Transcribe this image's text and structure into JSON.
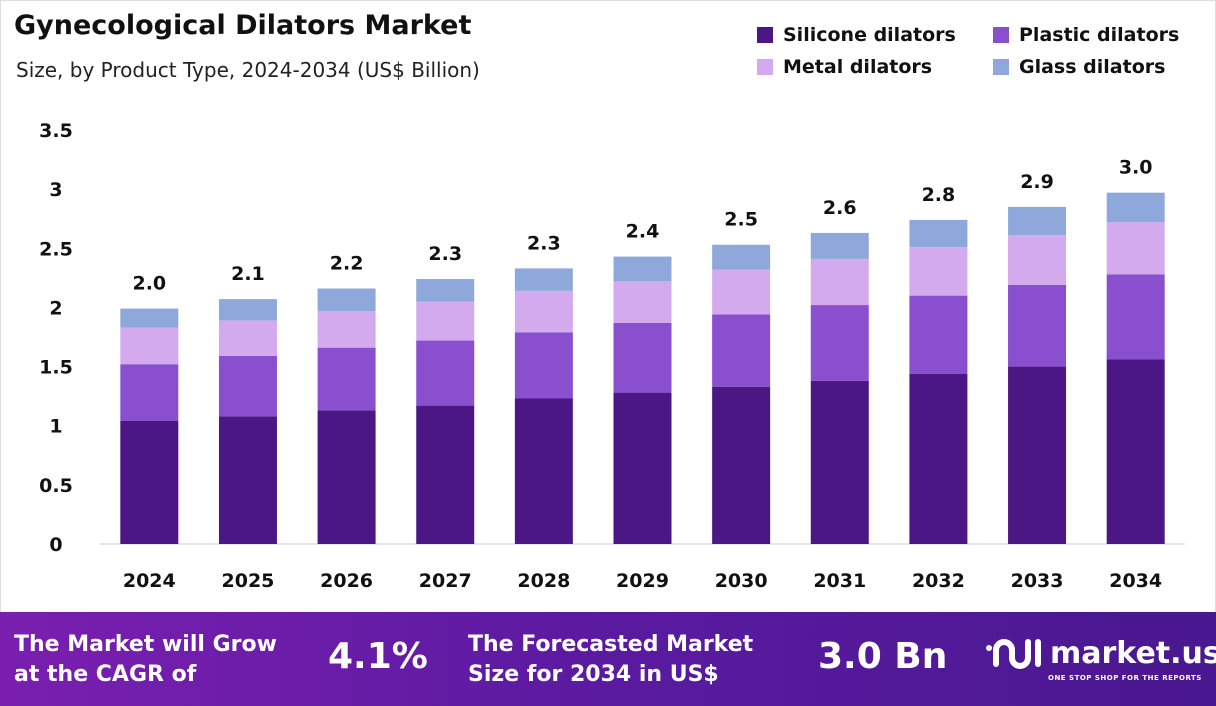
{
  "chart_data": {
    "type": "bar",
    "stacked": true,
    "title": "Gynecological Dilators Market",
    "subtitle": "Size, by Product Type, 2024-2034 (US$ Billion)",
    "categories": [
      "2024",
      "2025",
      "2026",
      "2027",
      "2028",
      "2029",
      "2030",
      "2031",
      "2032",
      "2033",
      "2034"
    ],
    "series": [
      {
        "name": "Silicone dilators",
        "color": "#4b1784",
        "values": [
          1.04,
          1.08,
          1.13,
          1.17,
          1.23,
          1.28,
          1.33,
          1.38,
          1.44,
          1.5,
          1.56
        ]
      },
      {
        "name": "Plastic dilators",
        "color": "#8a4fcf",
        "values": [
          0.48,
          0.51,
          0.53,
          0.55,
          0.56,
          0.59,
          0.61,
          0.64,
          0.66,
          0.69,
          0.72
        ]
      },
      {
        "name": "Metal dilators",
        "color": "#d4aaee",
        "values": [
          0.31,
          0.3,
          0.31,
          0.33,
          0.35,
          0.35,
          0.38,
          0.39,
          0.41,
          0.42,
          0.44
        ]
      },
      {
        "name": "Glass dilators",
        "color": "#8fa8dc",
        "values": [
          0.16,
          0.18,
          0.19,
          0.19,
          0.19,
          0.21,
          0.21,
          0.22,
          0.23,
          0.24,
          0.25
        ]
      }
    ],
    "totals": [
      "2.0",
      "2.1",
      "2.2",
      "2.3",
      "2.3",
      "2.4",
      "2.5",
      "2.6",
      "2.8",
      "2.9",
      "3.0"
    ],
    "yticks": [
      "0",
      "0.5",
      "1",
      "1.5",
      "2",
      "2.5",
      "3",
      "3.5"
    ],
    "ylim": [
      0,
      3.5
    ],
    "grid": false,
    "legend": "top-right"
  },
  "banner": {
    "cagr_label": "The Market will Grow at the CAGR of",
    "cagr_value": "4.1%",
    "forecast_label": "The Forecasted Market Size for 2034 in US$",
    "forecast_value": "3.0 Bn",
    "logo_text": "market.us",
    "logo_tagline": "ONE STOP SHOP FOR THE REPORTS"
  }
}
